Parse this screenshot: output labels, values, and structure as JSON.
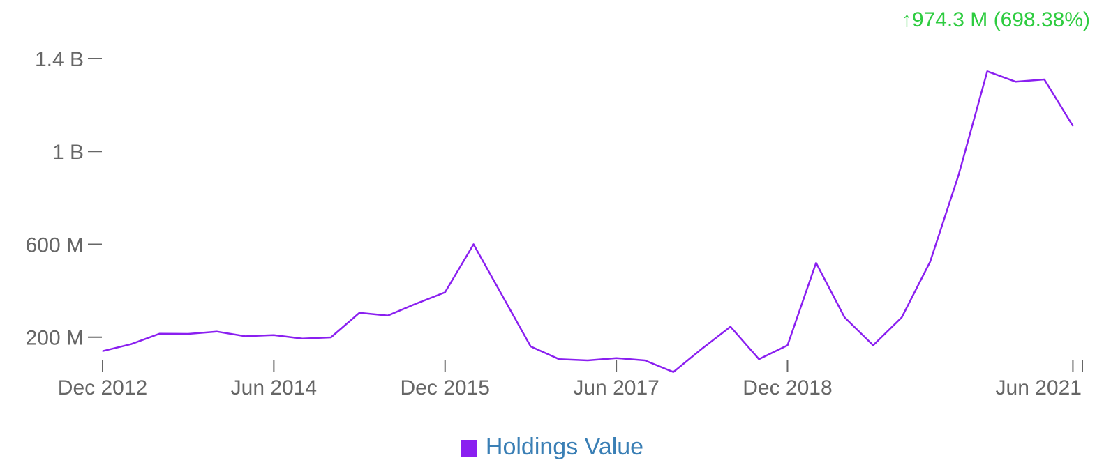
{
  "change_summary": "974.3 M (698.38%)",
  "change_icon": "arrow-up-icon",
  "colors": {
    "series": "#8a1ff0",
    "change_positive": "#2ecc40",
    "axis_text": "#666666",
    "legend_text": "#3a7fb5"
  },
  "chart_data": {
    "type": "line",
    "xlabel": "",
    "ylabel": "",
    "x_unit": "year",
    "x_range": [
      2012.917,
      2021.5
    ],
    "ylim": [
      100000000,
      1400000000
    ],
    "y_ticks": [
      {
        "value": 1400000000,
        "label": "1.4 B"
      },
      {
        "value": 1000000000,
        "label": "1 B"
      },
      {
        "value": 600000000,
        "label": "600 M"
      },
      {
        "value": 200000000,
        "label": "200 M"
      }
    ],
    "x_ticks": [
      {
        "value": 2012.917,
        "label": "Dec 2012"
      },
      {
        "value": 2014.417,
        "label": "Jun 2014"
      },
      {
        "value": 2015.917,
        "label": "Dec 2015"
      },
      {
        "value": 2017.417,
        "label": "Jun 2017"
      },
      {
        "value": 2018.917,
        "label": "Dec 2018"
      },
      {
        "value": 2021.417,
        "label": "Jun 2021"
      }
    ],
    "grid": false,
    "legend_position": "bottom-center",
    "series": [
      {
        "name": "Holdings Value",
        "x": [
          2012.917,
          2013.167,
          2013.417,
          2013.667,
          2013.917,
          2014.167,
          2014.417,
          2014.667,
          2014.917,
          2015.167,
          2015.417,
          2015.667,
          2015.917,
          2016.167,
          2016.417,
          2016.667,
          2016.917,
          2017.167,
          2017.417,
          2017.667,
          2017.917,
          2018.167,
          2018.417,
          2018.667,
          2018.917,
          2019.167,
          2019.417,
          2019.667,
          2019.917,
          2020.167,
          2020.417,
          2020.667,
          2020.917,
          2021.167,
          2021.417
        ],
        "values": [
          140000000,
          170000000,
          215000000,
          214000000,
          224000000,
          204000000,
          209000000,
          194000000,
          199000000,
          305000000,
          293000000,
          345000000,
          393000000,
          600000000,
          380000000,
          160000000,
          105000000,
          100000000,
          110000000,
          100000000,
          50000000,
          150000000,
          245000000,
          105000000,
          165000000,
          520000000,
          285000000,
          165000000,
          285000000,
          525000000,
          900000000,
          1345000000,
          1300000000,
          1310000000,
          1110000000
        ]
      }
    ]
  }
}
